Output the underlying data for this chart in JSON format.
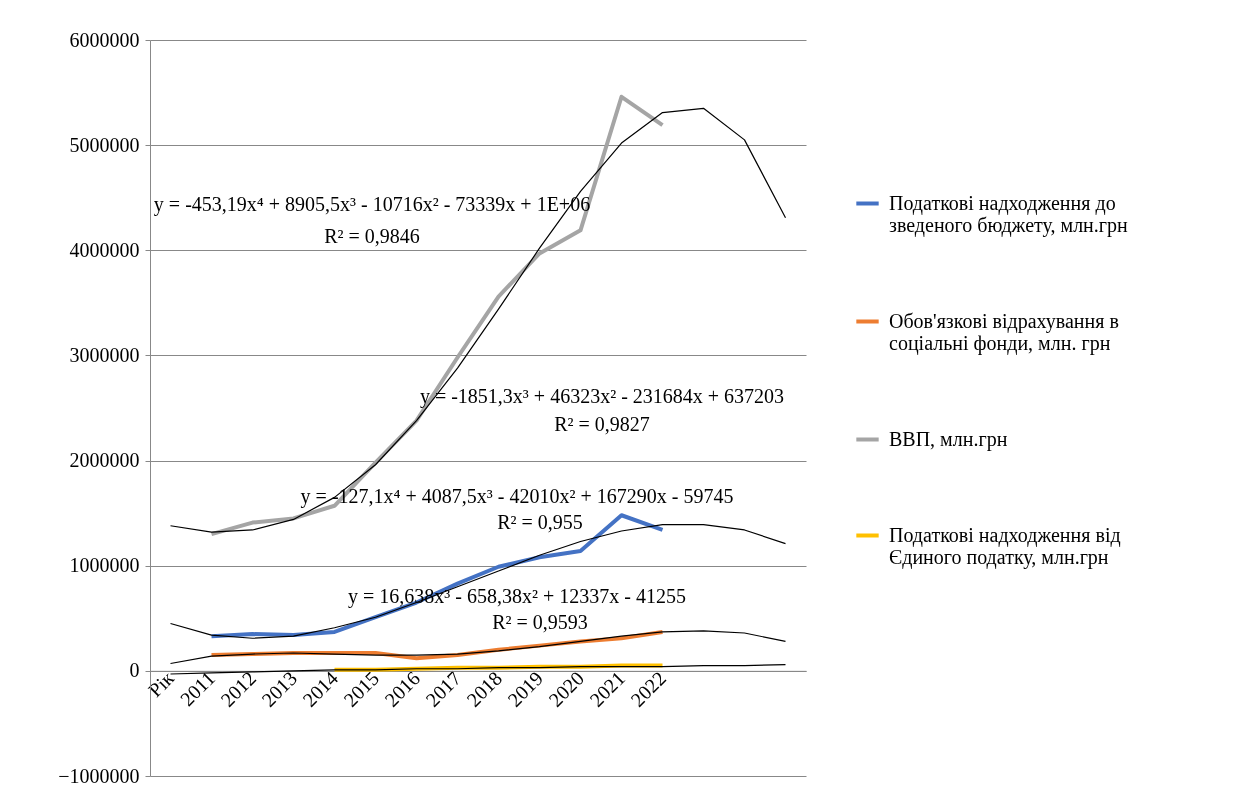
{
  "chart_data": {
    "type": "line",
    "categories": [
      "Рік",
      "2011",
      "2012",
      "2013",
      "2014",
      "2015",
      "2016",
      "2017",
      "2018",
      "2019",
      "2020",
      "2021",
      "2022",
      null,
      null,
      null
    ],
    "series": [
      {
        "name": "Податкові надходження до зведеного бюджету, млн.грн",
        "color": "#4472c4",
        "values": [
          null,
          330000,
          350000,
          340000,
          370000,
          510000,
          650000,
          830000,
          990000,
          1080000,
          1140000,
          1480000,
          1340000,
          null,
          null,
          null
        ]
      },
      {
        "name": "Обов'язкові відрахування в соціальні фонди, млн. грн",
        "color": "#ed7d31",
        "values": [
          null,
          150000,
          160000,
          170000,
          170000,
          170000,
          120000,
          150000,
          200000,
          240000,
          280000,
          310000,
          370000,
          null,
          null,
          null
        ]
      },
      {
        "name": "ВВП, млн.грн",
        "color": "#a5a5a5",
        "values": [
          null,
          1300000,
          1410000,
          1450000,
          1570000,
          1980000,
          2380000,
          2980000,
          3560000,
          3970000,
          4190000,
          5460000,
          5190000,
          null,
          null,
          null
        ]
      },
      {
        "name": "Податкові надходження від Єдиного податку, млн.грн",
        "color": "#ffc000",
        "values": [
          null,
          null,
          null,
          null,
          10000,
          10000,
          20000,
          30000,
          30000,
          40000,
          40000,
          50000,
          50000,
          null,
          null,
          null
        ]
      },
      {
        "color": "#000000",
        "values": [
          1380000,
          1320000,
          1340000,
          1440000,
          1650000,
          1960000,
          2380000,
          2880000,
          3440000,
          4020000,
          4560000,
          5020000,
          5310000,
          5350000,
          5050000,
          4310000
        ]
      },
      {
        "color": "#000000",
        "values": [
          450000,
          340000,
          310000,
          330000,
          410000,
          510000,
          650000,
          800000,
          950000,
          1100000,
          1230000,
          1330000,
          1390000,
          1390000,
          1340000,
          1210000
        ]
      },
      {
        "color": "#000000",
        "values": [
          70000,
          140000,
          160000,
          170000,
          160000,
          150000,
          150000,
          160000,
          190000,
          230000,
          280000,
          330000,
          370000,
          380000,
          360000,
          280000
        ]
      },
      {
        "color": "#000000",
        "values": [
          -30000,
          -20000,
          -10000,
          0,
          10000,
          10000,
          20000,
          20000,
          30000,
          30000,
          40000,
          40000,
          40000,
          50000,
          50000,
          60000
        ]
      }
    ],
    "ylim": [
      -1000000,
      6000000
    ],
    "yticks": [
      -1000000,
      0,
      1000000,
      2000000,
      3000000,
      4000000,
      5000000,
      6000000
    ],
    "grid": "y",
    "legend": "right",
    "annotations": [
      "y = -453,19x⁴ + 8905,5x³ - 10716x² - 73339x + 1E+06",
      "R² = 0,9846",
      "y = -1851,3x³ + 46323x² - 231684x + 637203",
      "R² = 0,9827",
      "y = -127,1x⁴ + 4087,5x³ - 42010x² + 167290x - 59745",
      "R² = 0,955",
      "y = 16,638x³ - 658,38x² + 12337x - 41255",
      "R² = 0,9593"
    ]
  }
}
